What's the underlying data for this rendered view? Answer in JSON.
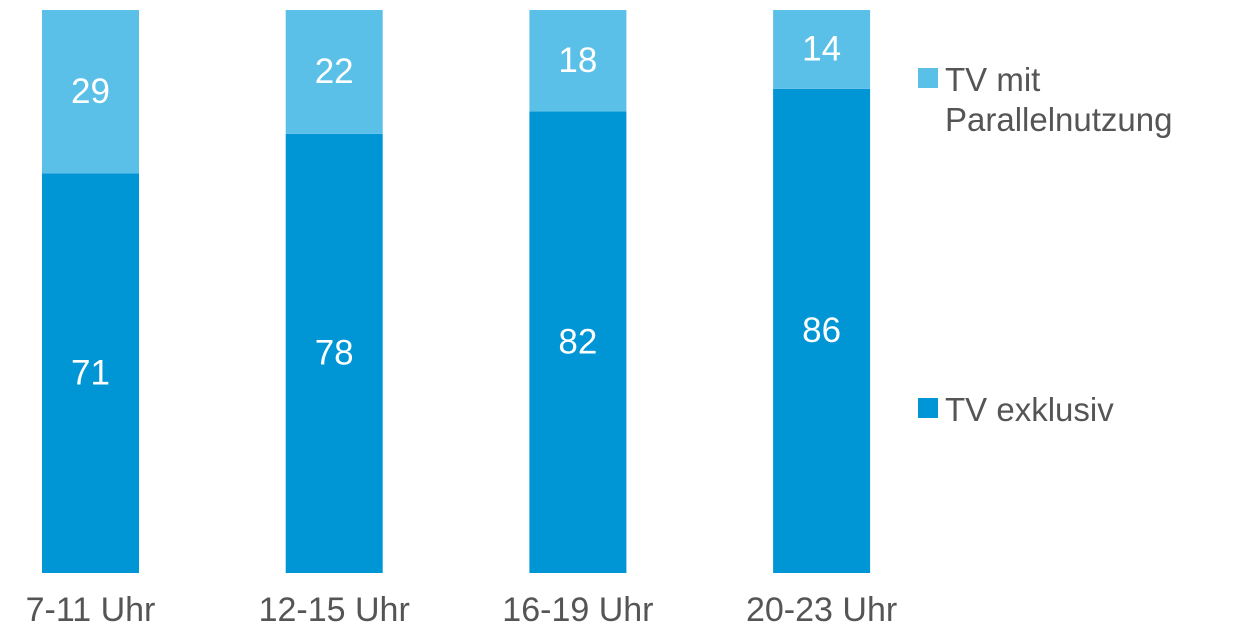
{
  "chart_data": {
    "type": "stacked_bar",
    "categories": [
      "7-11 Uhr",
      "12-15 Uhr",
      "16-19 Uhr",
      "20-23 Uhr"
    ],
    "series": [
      {
        "name": "TV exklusiv",
        "color": "#0096d6",
        "values": [
          71,
          78,
          82,
          86
        ]
      },
      {
        "name": "TV mit Parallelnutzung",
        "color": "#5bc0e8",
        "values": [
          29,
          22,
          18,
          14
        ]
      }
    ],
    "ylim": [
      0,
      100
    ],
    "legend": "right"
  }
}
